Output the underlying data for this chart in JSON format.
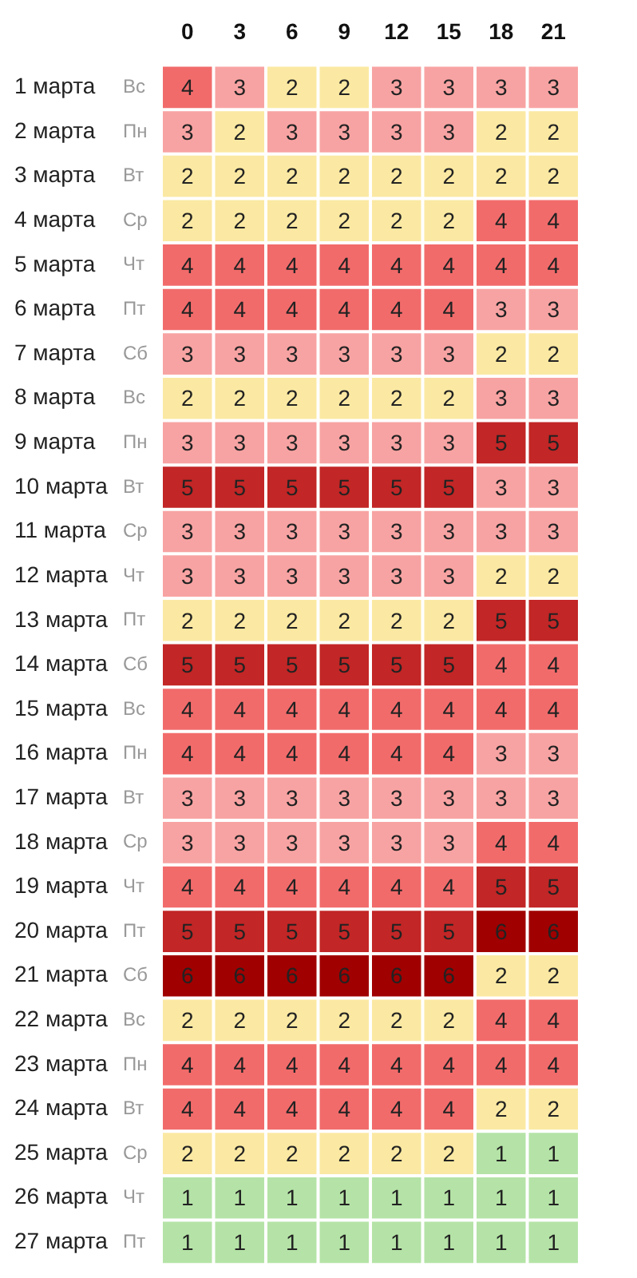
{
  "chart_data": {
    "type": "heatmap",
    "categories": [
      "0",
      "3",
      "6",
      "9",
      "12",
      "15",
      "18",
      "21"
    ],
    "y_categories": [
      "1 марта",
      "2 марта",
      "3 марта",
      "4 марта",
      "5 марта",
      "6 марта",
      "7 марта",
      "8 марта",
      "9 марта",
      "10 марта",
      "11 марта",
      "12 марта",
      "13 марта",
      "14 марта",
      "15 марта",
      "16 марта",
      "17 марта",
      "18 марта",
      "19 марта",
      "20 марта",
      "21 марта",
      "22 марта",
      "23 марта",
      "24 марта",
      "25 марта",
      "26 марта",
      "27 марта"
    ],
    "y2_categories": [
      "Вс",
      "Пн",
      "Вт",
      "Ср",
      "Чт",
      "Пт",
      "Сб",
      "Вс",
      "Пн",
      "Вт",
      "Ср",
      "Чт",
      "Пт",
      "Сб",
      "Вс",
      "Пн",
      "Вт",
      "Ср",
      "Чт",
      "Пт",
      "Сб",
      "Вс",
      "Пн",
      "Вт",
      "Ср",
      "Чт",
      "Пт"
    ],
    "cells": [
      [
        4,
        3,
        2,
        2,
        3,
        3,
        3,
        3
      ],
      [
        3,
        2,
        3,
        3,
        3,
        3,
        2,
        2
      ],
      [
        2,
        2,
        2,
        2,
        2,
        2,
        2,
        2
      ],
      [
        2,
        2,
        2,
        2,
        2,
        2,
        4,
        4
      ],
      [
        4,
        4,
        4,
        4,
        4,
        4,
        4,
        4
      ],
      [
        4,
        4,
        4,
        4,
        4,
        4,
        3,
        3
      ],
      [
        3,
        3,
        3,
        3,
        3,
        3,
        2,
        2
      ],
      [
        2,
        2,
        2,
        2,
        2,
        2,
        3,
        3
      ],
      [
        3,
        3,
        3,
        3,
        3,
        3,
        5,
        5
      ],
      [
        5,
        5,
        5,
        5,
        5,
        5,
        3,
        3
      ],
      [
        3,
        3,
        3,
        3,
        3,
        3,
        3,
        3
      ],
      [
        3,
        3,
        3,
        3,
        3,
        3,
        2,
        2
      ],
      [
        2,
        2,
        2,
        2,
        2,
        2,
        5,
        5
      ],
      [
        5,
        5,
        5,
        5,
        5,
        5,
        4,
        4
      ],
      [
        4,
        4,
        4,
        4,
        4,
        4,
        4,
        4
      ],
      [
        4,
        4,
        4,
        4,
        4,
        4,
        3,
        3
      ],
      [
        3,
        3,
        3,
        3,
        3,
        3,
        3,
        3
      ],
      [
        3,
        3,
        3,
        3,
        3,
        3,
        4,
        4
      ],
      [
        4,
        4,
        4,
        4,
        4,
        4,
        5,
        5
      ],
      [
        5,
        5,
        5,
        5,
        5,
        5,
        6,
        6
      ],
      [
        6,
        6,
        6,
        6,
        6,
        6,
        2,
        2
      ],
      [
        2,
        2,
        2,
        2,
        2,
        2,
        4,
        4
      ],
      [
        4,
        4,
        4,
        4,
        4,
        4,
        4,
        4
      ],
      [
        4,
        4,
        4,
        4,
        4,
        4,
        2,
        2
      ],
      [
        2,
        2,
        2,
        2,
        2,
        2,
        1,
        1
      ],
      [
        1,
        1,
        1,
        1,
        1,
        1,
        1,
        1
      ],
      [
        1,
        1,
        1,
        1,
        1,
        1,
        1,
        1
      ]
    ],
    "data_labels": true
  }
}
